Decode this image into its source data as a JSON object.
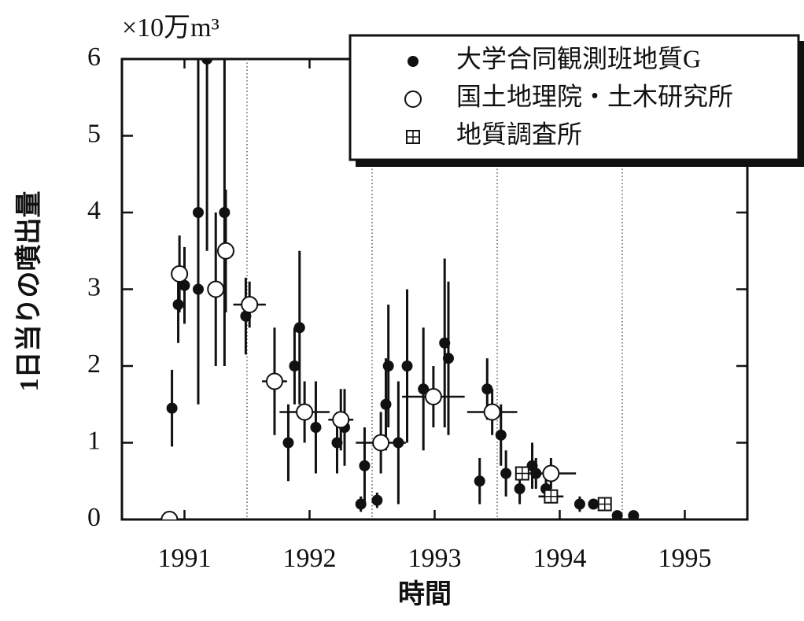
{
  "chart_data": {
    "type": "scatter",
    "unit_label": "×10万m³",
    "x_label": "時間",
    "y_label": "1日当りの噴出量",
    "xlim": [
      1991,
      1996
    ],
    "ylim": [
      0,
      6
    ],
    "xticks": [
      {
        "value": 1991.5,
        "label": "1991"
      },
      {
        "value": 1992.5,
        "label": "1992"
      },
      {
        "value": 1993.5,
        "label": "1993"
      },
      {
        "value": 1994.5,
        "label": "1994"
      },
      {
        "value": 1995.5,
        "label": "1995"
      }
    ],
    "yticks": [
      0,
      1,
      2,
      3,
      4,
      5,
      6
    ],
    "xgrid": [
      1992,
      1993,
      1994,
      1995
    ],
    "legend": "upper right",
    "series": [
      {
        "name": "大学合同観測班地質G",
        "color": "#111111",
        "marker": "filled",
        "x": [
          1991.4,
          1991.45,
          1991.5,
          1991.61,
          1991.61,
          1991.68,
          1991.82,
          1991.99,
          1992.33,
          1992.38,
          1992.42,
          1992.55,
          1992.72,
          1992.78,
          1992.91,
          1992.94,
          1993.04,
          1993.11,
          1993.13,
          1993.21,
          1993.28,
          1993.41,
          1993.58,
          1993.61,
          1993.86,
          1993.92,
          1994.03,
          1994.07,
          1994.18,
          1994.28,
          1994.31,
          1994.39,
          1994.66,
          1994.77,
          1994.96,
          1995.09
        ],
        "values": [
          1.45,
          2.8,
          3.05,
          4.0,
          3.0,
          6.0,
          4.0,
          2.65,
          1.0,
          2.0,
          2.5,
          1.2,
          1.0,
          1.2,
          0.2,
          0.7,
          0.25,
          1.5,
          2.0,
          1.0,
          2.0,
          1.7,
          2.3,
          2.1,
          0.5,
          1.7,
          1.1,
          0.6,
          0.4,
          0.7,
          0.6,
          0.4,
          0.2,
          0.2,
          0.05,
          0.05
        ],
        "y_errors": [
          0.5,
          0.5,
          0.5,
          2.0,
          1.5,
          2.5,
          2.0,
          0.5,
          0.5,
          0.5,
          1.0,
          0.6,
          0.4,
          0.5,
          0.1,
          0.5,
          0.1,
          0.6,
          0.8,
          0.8,
          1.0,
          0.8,
          1.1,
          1.0,
          0.3,
          0.4,
          0.4,
          0.3,
          0.2,
          0.3,
          0.2,
          0.15,
          0.1,
          0.05,
          null,
          null
        ],
        "x_errors": [
          null,
          null,
          null,
          null,
          null,
          null,
          null,
          null,
          null,
          null,
          null,
          null,
          null,
          null,
          null,
          null,
          null,
          null,
          null,
          null,
          null,
          null,
          null,
          null,
          null,
          null,
          null,
          null,
          null,
          null,
          null,
          null,
          null,
          null,
          null,
          null
        ]
      },
      {
        "name": "国土地理院・土木研究所",
        "color": "#111111",
        "marker": "open",
        "x": [
          1991.38,
          1991.46,
          1991.75,
          1991.83,
          1992.02,
          1992.22,
          1992.46,
          1992.75,
          1993.07,
          1993.49,
          1993.96,
          1994.43
        ],
        "values": [
          0,
          3.2,
          3.0,
          3.5,
          2.8,
          1.8,
          1.4,
          1.3,
          1.0,
          1.6,
          1.4,
          0.6
        ],
        "y_errors": [
          null,
          0.5,
          1.0,
          0.8,
          0.3,
          0.7,
          0.4,
          0.4,
          0.4,
          0.4,
          0.3,
          0.2
        ],
        "x_errors": [
          null,
          null,
          null,
          null,
          0.13,
          0.1,
          0.2,
          0.1,
          0.2,
          0.25,
          0.2,
          0.2
        ]
      },
      {
        "name": "地質調査所",
        "color": "#111111",
        "marker": "square",
        "x": [
          1994.2,
          1994.43,
          1994.86
        ],
        "values": [
          0.6,
          0.3,
          0.2
        ],
        "y_errors": [
          null,
          null,
          null
        ],
        "x_errors": [
          0.05,
          0.1,
          0.05
        ]
      }
    ]
  }
}
